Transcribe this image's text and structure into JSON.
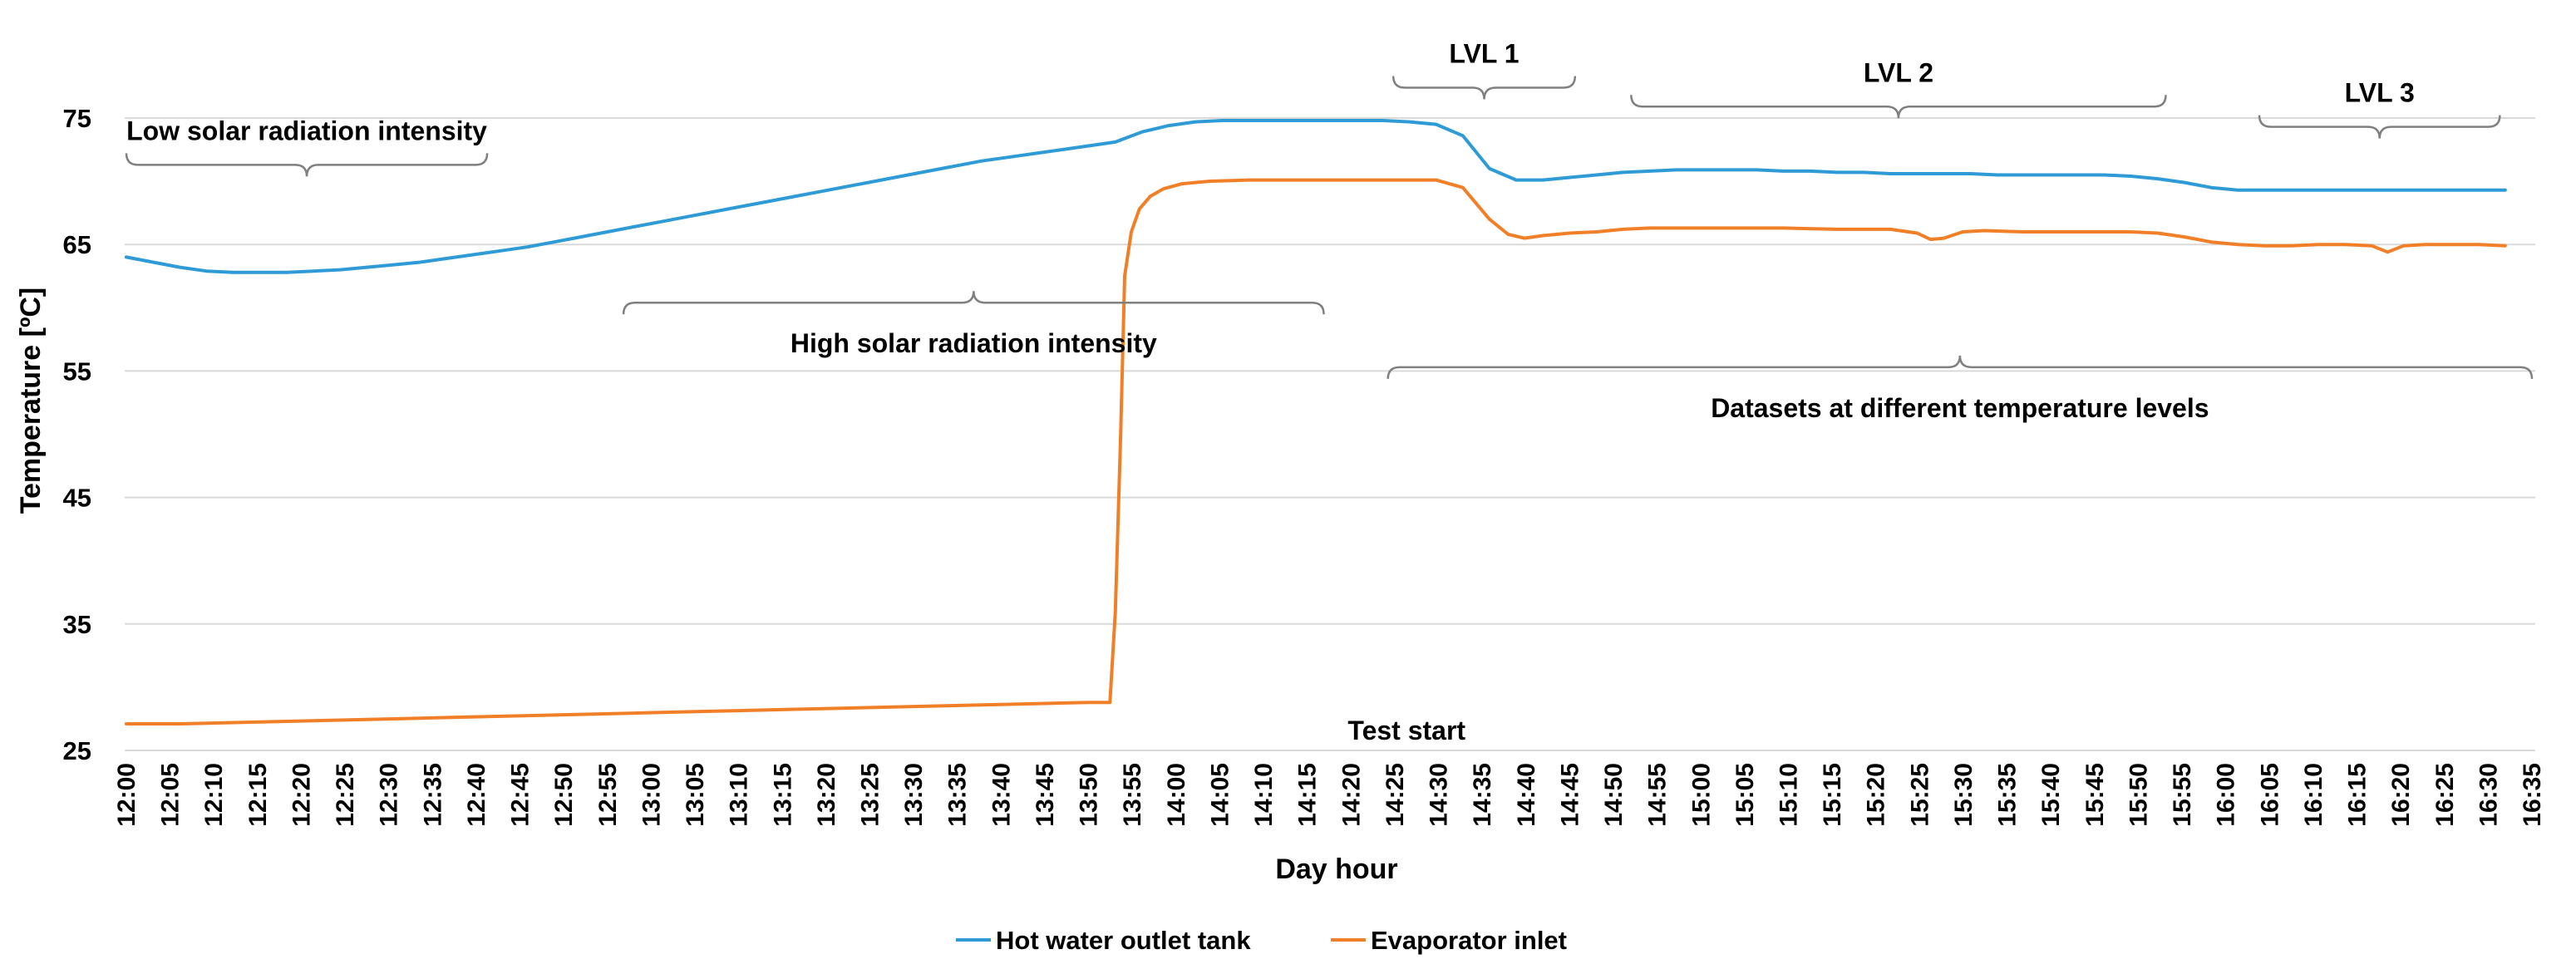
{
  "chart_data": {
    "type": "line",
    "title": "",
    "xlabel": "Day hour",
    "ylabel": "Temperature [ºC]",
    "ylim": [
      25,
      80
    ],
    "yticks": [
      25,
      35,
      45,
      55,
      65,
      75
    ],
    "grid": true,
    "legend_position": "bottom",
    "x": [
      "12:00",
      "12:05",
      "12:10",
      "12:15",
      "12:20",
      "12:25",
      "12:30",
      "12:35",
      "12:40",
      "12:45",
      "12:50",
      "12:55",
      "13:00",
      "13:05",
      "13:10",
      "13:15",
      "13:20",
      "13:25",
      "13:30",
      "13:35",
      "13:40",
      "13:45",
      "13:50",
      "13:55",
      "14:00",
      "14:05",
      "14:10",
      "14:15",
      "14:20",
      "14:25",
      "14:30",
      "14:35",
      "14:40",
      "14:45",
      "14:50",
      "14:55",
      "15:00",
      "15:05",
      "15:10",
      "15:15",
      "15:20",
      "15:25",
      "15:30",
      "15:35",
      "15:40",
      "15:45",
      "15:50",
      "15:55",
      "16:00",
      "16:05",
      "16:10",
      "16:15",
      "16:20",
      "16:25",
      "16:30",
      "16:35"
    ],
    "series": [
      {
        "name": "Hot water outlet tank",
        "color": "#2E9BD6",
        "points": [
          [
            0,
            64.0
          ],
          [
            1,
            63.6
          ],
          [
            2,
            63.2
          ],
          [
            3,
            62.9
          ],
          [
            4,
            62.8
          ],
          [
            5,
            62.8
          ],
          [
            6,
            62.8
          ],
          [
            7,
            62.9
          ],
          [
            8,
            63.0
          ],
          [
            9,
            63.2
          ],
          [
            10,
            63.4
          ],
          [
            11,
            63.6
          ],
          [
            12,
            63.9
          ],
          [
            13,
            64.2
          ],
          [
            14,
            64.5
          ],
          [
            15,
            64.8
          ],
          [
            16,
            65.2
          ],
          [
            17,
            65.6
          ],
          [
            18,
            66.0
          ],
          [
            19,
            66.4
          ],
          [
            20,
            66.8
          ],
          [
            21,
            67.2
          ],
          [
            22,
            67.6
          ],
          [
            23,
            68.0
          ],
          [
            24,
            68.4
          ],
          [
            25,
            68.8
          ],
          [
            26,
            69.2
          ],
          [
            27,
            69.6
          ],
          [
            28,
            70.0
          ],
          [
            29,
            70.4
          ],
          [
            30,
            70.8
          ],
          [
            31,
            71.2
          ],
          [
            32,
            71.6
          ],
          [
            33,
            71.9
          ],
          [
            34,
            72.2
          ],
          [
            35,
            72.5
          ],
          [
            36,
            72.8
          ],
          [
            37,
            73.1
          ],
          [
            38,
            73.9
          ],
          [
            39,
            74.4
          ],
          [
            40,
            74.7
          ],
          [
            41,
            74.8
          ],
          [
            42,
            74.8
          ],
          [
            43,
            74.8
          ],
          [
            44,
            74.8
          ],
          [
            45,
            74.8
          ],
          [
            46,
            74.8
          ],
          [
            47,
            74.8
          ],
          [
            48,
            74.7
          ],
          [
            49,
            74.5
          ],
          [
            50,
            73.6
          ],
          [
            51,
            71.0
          ],
          [
            52,
            70.1
          ],
          [
            53,
            70.1
          ],
          [
            54,
            70.3
          ],
          [
            55,
            70.5
          ],
          [
            56,
            70.7
          ],
          [
            57,
            70.8
          ],
          [
            58,
            70.9
          ],
          [
            59,
            70.9
          ],
          [
            60,
            70.9
          ],
          [
            61,
            70.9
          ],
          [
            62,
            70.8
          ],
          [
            63,
            70.8
          ],
          [
            64,
            70.7
          ],
          [
            65,
            70.7
          ],
          [
            66,
            70.6
          ],
          [
            67,
            70.6
          ],
          [
            68,
            70.6
          ],
          [
            69,
            70.6
          ],
          [
            70,
            70.5
          ],
          [
            71,
            70.5
          ],
          [
            72,
            70.5
          ],
          [
            73,
            70.5
          ],
          [
            74,
            70.5
          ],
          [
            75,
            70.4
          ],
          [
            76,
            70.2
          ],
          [
            77,
            69.9
          ],
          [
            78,
            69.5
          ],
          [
            79,
            69.3
          ],
          [
            80,
            69.3
          ],
          [
            81,
            69.3
          ],
          [
            82,
            69.3
          ],
          [
            83,
            69.3
          ],
          [
            84,
            69.3
          ],
          [
            85,
            69.3
          ],
          [
            86,
            69.3
          ],
          [
            87,
            69.3
          ],
          [
            88,
            69.3
          ],
          [
            89,
            69.3
          ]
        ]
      },
      {
        "name": "Evaporator inlet",
        "color": "#F07F28",
        "points": [
          [
            0,
            27.1
          ],
          [
            2,
            27.1
          ],
          [
            4,
            27.2
          ],
          [
            6,
            27.3
          ],
          [
            8,
            27.4
          ],
          [
            10,
            27.5
          ],
          [
            12,
            27.6
          ],
          [
            14,
            27.7
          ],
          [
            16,
            27.8
          ],
          [
            18,
            27.9
          ],
          [
            20,
            28.0
          ],
          [
            22,
            28.1
          ],
          [
            24,
            28.2
          ],
          [
            26,
            28.3
          ],
          [
            28,
            28.4
          ],
          [
            30,
            28.5
          ],
          [
            32,
            28.6
          ],
          [
            34,
            28.7
          ],
          [
            36,
            28.8
          ],
          [
            36.8,
            28.8
          ],
          [
            37.0,
            36.0
          ],
          [
            37.2,
            50.0
          ],
          [
            37.35,
            62.5
          ],
          [
            37.6,
            66.0
          ],
          [
            37.9,
            67.8
          ],
          [
            38.3,
            68.8
          ],
          [
            38.8,
            69.4
          ],
          [
            39.5,
            69.8
          ],
          [
            40.5,
            70.0
          ],
          [
            42,
            70.1
          ],
          [
            44,
            70.1
          ],
          [
            46,
            70.1
          ],
          [
            48,
            70.1
          ],
          [
            49,
            70.1
          ],
          [
            50,
            69.5
          ],
          [
            51,
            67.0
          ],
          [
            51.7,
            65.8
          ],
          [
            52.3,
            65.5
          ],
          [
            53,
            65.7
          ],
          [
            54,
            65.9
          ],
          [
            55,
            66.0
          ],
          [
            56,
            66.2
          ],
          [
            57,
            66.3
          ],
          [
            58,
            66.3
          ],
          [
            59,
            66.3
          ],
          [
            60,
            66.3
          ],
          [
            62,
            66.3
          ],
          [
            64,
            66.2
          ],
          [
            66,
            66.2
          ],
          [
            67,
            65.9
          ],
          [
            67.5,
            65.4
          ],
          [
            68,
            65.5
          ],
          [
            68.7,
            66.0
          ],
          [
            69.5,
            66.1
          ],
          [
            71,
            66.0
          ],
          [
            73,
            66.0
          ],
          [
            75,
            66.0
          ],
          [
            76,
            65.9
          ],
          [
            77,
            65.6
          ],
          [
            78,
            65.2
          ],
          [
            79,
            65.0
          ],
          [
            80,
            64.9
          ],
          [
            81,
            64.9
          ],
          [
            82,
            65.0
          ],
          [
            83,
            65.0
          ],
          [
            84,
            64.9
          ],
          [
            84.6,
            64.4
          ],
          [
            85.2,
            64.9
          ],
          [
            86,
            65.0
          ],
          [
            87,
            65.0
          ],
          [
            88,
            65.0
          ],
          [
            89,
            64.9
          ]
        ]
      }
    ],
    "annotations": [
      {
        "text": "Low solar radiation intensity",
        "brace": [
          0,
          13.5
        ],
        "value": 71.3
      },
      {
        "text": "High solar radiation intensity",
        "brace": [
          18.6,
          44.8
        ],
        "value": 60.4
      },
      {
        "text": "Test start",
        "value": 26.5,
        "x": 47.9
      },
      {
        "text": "LVL 1",
        "brace": [
          47.4,
          54.2
        ],
        "value": 77.4
      },
      {
        "text": "LVL 2",
        "brace": [
          56.3,
          76.3
        ],
        "value": 75.9
      },
      {
        "text": "LVL 3",
        "brace": [
          79.8,
          88.8
        ],
        "value": 74.3
      },
      {
        "text": "Datasets at different temperature levels",
        "brace": [
          47.2,
          90.0
        ],
        "value": 55.3
      }
    ]
  }
}
